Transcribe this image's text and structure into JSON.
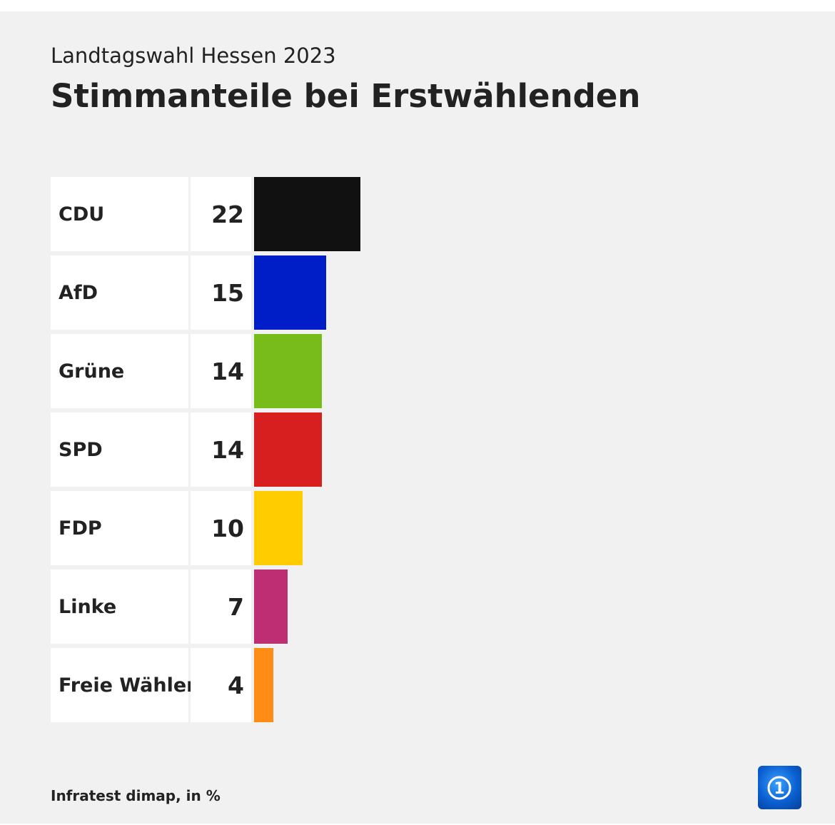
{
  "header": {
    "subtitle": "Landtagswahl Hessen 2023",
    "title": "Stimmanteile bei Erstwählenden"
  },
  "footer": {
    "source": "Infratest dimap, in %",
    "logo_icon": "ard-logo-icon"
  },
  "chart_data": {
    "type": "bar",
    "orientation": "horizontal",
    "subtitle": "Landtagswahl Hessen 2023",
    "title": "Stimmanteile bei Erstwählenden",
    "unit": "%",
    "categories": [
      "CDU",
      "AfD",
      "Grüne",
      "SPD",
      "FDP",
      "Linke",
      "Freie Wähler"
    ],
    "values": [
      22,
      15,
      14,
      14,
      10,
      7,
      4
    ],
    "colors": [
      "#111111",
      "#001ec8",
      "#78bc1b",
      "#d71f1f",
      "#ffcc00",
      "#bd2f72",
      "#ff8c14"
    ],
    "grid": false,
    "legend": "none"
  }
}
